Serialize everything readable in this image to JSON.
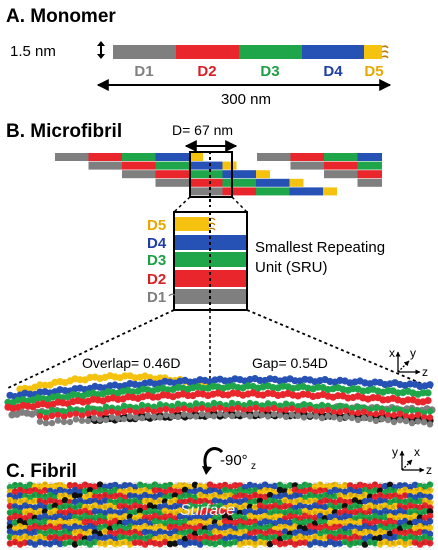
{
  "colors": {
    "d1": "#7f7f7f",
    "d2": "#e8262c",
    "d3": "#1fa64a",
    "d4": "#2651b5",
    "d5": "#f5c20f",
    "d1_label": "#7f7f7f",
    "d2_label": "#d81f26",
    "d3_label": "#1e9e45",
    "d4_label": "#1f3ea6",
    "d5_label": "#e6a800",
    "black": "#111111",
    "fibril_surface_text": "#f2f2f2"
  },
  "section_a": {
    "title": "A. Monomer",
    "thickness_label": "1.5 nm",
    "domains": [
      "D1",
      "D2",
      "D3",
      "D4",
      "D5"
    ],
    "length_label": "300 nm"
  },
  "section_b": {
    "title": "B. Microfibril",
    "d_period_label": "D= 67 nm",
    "sru_domains": [
      "D5",
      "D4",
      "D3",
      "D2",
      "D1"
    ],
    "sru_label_line1": "Smallest Repeating",
    "sru_label_line2": "Unit (SRU)",
    "overlap_label": "Overlap= 0.46D",
    "gap_label": "Gap= 0.54D",
    "axes_micro": {
      "vertical": "x",
      "diagonal": "y",
      "horizontal": "z"
    }
  },
  "rotation": {
    "angle_label": "-90°",
    "axis_subscript": "z"
  },
  "section_c": {
    "title": "C. Fibril",
    "surface_label": "Surface",
    "axes_fibril": {
      "vertical": "y",
      "diagonal": "x",
      "horizontal": "z"
    }
  }
}
